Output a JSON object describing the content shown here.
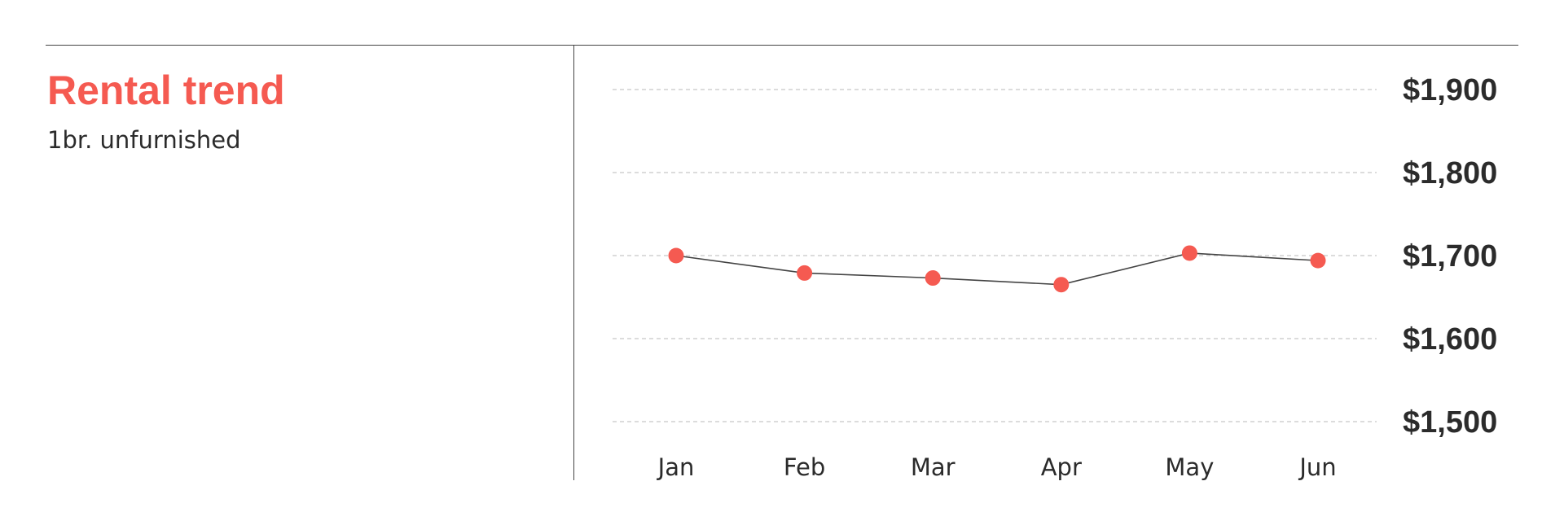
{
  "header": {
    "title": "Rental trend",
    "subtitle": "1br. unfurnished"
  },
  "colors": {
    "accent": "#f55a51",
    "text": "#2b2b2b",
    "line": "#444444",
    "grid": "#c8c8c8"
  },
  "chart_data": {
    "type": "line",
    "title": "Rental trend",
    "subtitle": "1br. unfurnished",
    "categories": [
      "Jan",
      "Feb",
      "Mar",
      "Apr",
      "May",
      "Jun"
    ],
    "series": [
      {
        "values": [
          1700,
          1679,
          1673,
          1665,
          1703,
          1694
        ]
      }
    ],
    "ylim": [
      1500,
      1900
    ],
    "yticks": [
      1900,
      1800,
      1700,
      1600,
      1500
    ],
    "ytick_labels": [
      "$1,900",
      "$1,800",
      "$1,700",
      "$1,600",
      "$1,500"
    ],
    "yaxis_position": "right",
    "grid": true,
    "grid_style": "dashed",
    "legend": false
  }
}
